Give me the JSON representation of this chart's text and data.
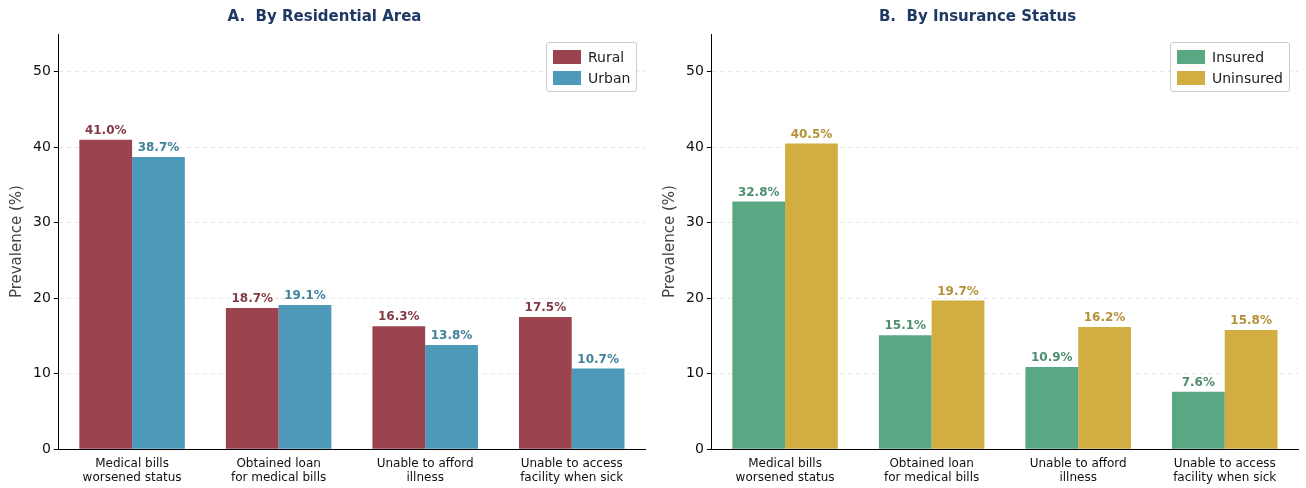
{
  "chart_data": [
    {
      "type": "bar",
      "title": "A.  By Residential Area",
      "ylabel": "Prevalence (%)",
      "categories": [
        "Medical bills\nworsened status",
        "Obtained loan\nfor medical bills",
        "Unable to afford\nillness",
        "Unable to access\nfacility when sick"
      ],
      "series": [
        {
          "name": "Rural",
          "color": "#9b4450",
          "values": [
            41.0,
            18.7,
            16.3,
            17.5
          ],
          "value_labels": [
            "41.0%",
            "18.7%",
            "16.3%",
            "17.5%"
          ]
        },
        {
          "name": "Urban",
          "color": "#4d99b9",
          "values": [
            38.7,
            19.1,
            13.8,
            10.7
          ],
          "value_labels": [
            "38.7%",
            "19.1%",
            "13.8%",
            "10.7%"
          ]
        }
      ],
      "ylim": [
        0,
        55
      ],
      "yticks": [
        0,
        10,
        20,
        30,
        40,
        50
      ],
      "grid": "y",
      "legend": "top right"
    },
    {
      "type": "bar",
      "title": "B.  By Insurance Status",
      "ylabel": "Prevalence (%)",
      "categories": [
        "Medical bills\nworsened status",
        "Obtained loan\nfor medical bills",
        "Unable to afford\nillness",
        "Unable to access\nfacility when sick"
      ],
      "series": [
        {
          "name": "Insured",
          "color": "#5aa883",
          "values": [
            32.8,
            15.1,
            10.9,
            7.6
          ],
          "value_labels": [
            "32.8%",
            "15.1%",
            "10.9%",
            "7.6%"
          ]
        },
        {
          "name": "Uninsured",
          "color": "#d1ad42",
          "values": [
            40.5,
            19.7,
            16.2,
            15.8
          ],
          "value_labels": [
            "40.5%",
            "19.7%",
            "16.2%",
            "15.8%"
          ]
        }
      ],
      "ylim": [
        0,
        55
      ],
      "yticks": [
        0,
        10,
        20,
        30,
        40,
        50
      ],
      "grid": "y",
      "legend": "top right"
    }
  ]
}
